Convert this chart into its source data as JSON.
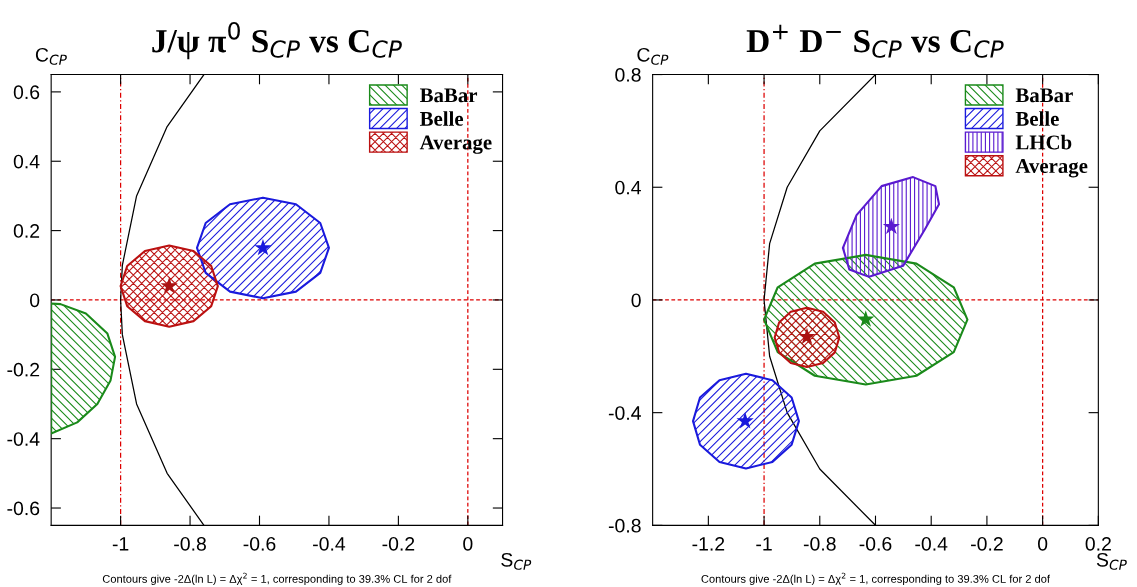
{
  "chart_data": [
    {
      "type": "area",
      "title": "J/ψ π$^{0}$ S$_{CP}$ vs C$_{CP}$",
      "xlabel": "S$_{CP}$",
      "ylabel": "C$_{CP}$",
      "xlim": [
        -1.2,
        0.1
      ],
      "ylim": [
        -0.65,
        0.65
      ],
      "xticks": [
        -1,
        -0.8,
        -0.6,
        -0.4,
        -0.2,
        0
      ],
      "yticks": [
        -0.6,
        -0.4,
        -0.2,
        0,
        0.2,
        0.4,
        0.6
      ],
      "grid": false,
      "legend": "top right",
      "annotations": [
        "Contours give -2Δ(ln L) = Δχ$^{2}$ = 1, corresponding to 39.3% CL for 2 dof"
      ],
      "ref_lines": [
        {
          "axis": "x",
          "value": -1,
          "color": "#dd0000",
          "line_style": "dashdot"
        },
        {
          "axis": "x",
          "value": 0,
          "color": "#dd0000",
          "line_style": "dashed"
        },
        {
          "axis": "y",
          "value": 0,
          "color": "#dd0000",
          "line_style": "dashed"
        }
      ],
      "series": [
        {
          "type": "line",
          "color": "#000000",
          "x": [
            -0.76,
            -0.866,
            -0.954,
            -0.995,
            -1.0,
            -0.995,
            -0.954,
            -0.866,
            -0.76
          ],
          "values": [
            0.65,
            0.5,
            0.3,
            0.1,
            0,
            -0.1,
            -0.3,
            -0.5,
            -0.65
          ]
        },
        {
          "name": "BaBar",
          "color": "#1a8a1a",
          "x": [
            -1.2,
            -1.173,
            -1.1,
            -1.038,
            -1.016,
            -1.029,
            -1.067,
            -1.125,
            -1.2
          ],
          "values": [
            -0.01,
            -0.012,
            -0.039,
            -0.097,
            -0.164,
            -0.232,
            -0.3,
            -0.353,
            -0.385
          ]
        },
        {
          "name": "Belle",
          "color": "#1a1add",
          "x": [
            -0.4,
            -0.425,
            -0.495,
            -0.59,
            -0.685,
            -0.755,
            -0.78,
            -0.755,
            -0.685,
            -0.59,
            -0.495,
            -0.425
          ],
          "values": [
            0.15,
            0.222,
            0.276,
            0.295,
            0.276,
            0.222,
            0.15,
            0.078,
            0.024,
            0.005,
            0.024,
            0.078
          ]
        },
        {
          "name": "Average",
          "color": "#bb1111",
          "x": [
            -0.72,
            -0.739,
            -0.79,
            -0.86,
            -0.93,
            -0.981,
            -1.0,
            -0.981,
            -0.93,
            -0.86,
            -0.79,
            -0.739
          ],
          "values": [
            0.04,
            0.098,
            0.141,
            0.157,
            0.141,
            0.098,
            0.04,
            -0.018,
            -0.061,
            -0.077,
            -0.061,
            -0.018
          ]
        },
        {
          "type": "scatter",
          "marker": "star",
          "color": "#1a1add",
          "x": [
            -0.59
          ],
          "values": [
            0.15
          ]
        },
        {
          "type": "scatter",
          "marker": "star",
          "color": "#aa1111",
          "x": [
            -0.86
          ],
          "values": [
            0.04
          ]
        }
      ]
    },
    {
      "type": "area",
      "title": "D$^{+}$ D$^{−}$ S$_{CP}$ vs C$_{CP}$",
      "xlabel": "S$_{CP}$",
      "ylabel": "C$_{CP}$",
      "xlim": [
        -1.4,
        0.2
      ],
      "ylim": [
        -0.8,
        0.8
      ],
      "xticks": [
        -1.2,
        -1,
        -0.8,
        -0.6,
        -0.4,
        -0.2,
        0,
        0.2
      ],
      "yticks": [
        -0.8,
        -0.4,
        0,
        0.4,
        0.8
      ],
      "grid": false,
      "legend": "top right",
      "annotations": [
        "Contours give -2Δ(ln L) = Δχ$^{2}$ = 1, corresponding to 39.3% CL for 2 dof"
      ],
      "ref_lines": [
        {
          "axis": "x",
          "value": -1,
          "color": "#dd0000",
          "line_style": "dashdot"
        },
        {
          "axis": "x",
          "value": 0,
          "color": "#dd0000",
          "line_style": "dashed"
        },
        {
          "axis": "y",
          "value": 0,
          "color": "#dd0000",
          "line_style": "dashed"
        }
      ],
      "series": [
        {
          "type": "line",
          "color": "#000000",
          "x": [
            -0.6,
            -0.8,
            -0.917,
            -0.98,
            -1.0,
            -0.98,
            -0.917,
            -0.8,
            -0.6
          ],
          "values": [
            0.8,
            0.6,
            0.4,
            0.2,
            0,
            -0.2,
            -0.4,
            -0.6,
            -0.8
          ]
        },
        {
          "name": "BaBar",
          "color": "#1a8a1a",
          "x": [
            -0.27,
            -0.319,
            -0.453,
            -0.635,
            -0.818,
            -0.951,
            -1.0,
            -0.951,
            -0.818,
            -0.635,
            -0.453,
            -0.319
          ],
          "values": [
            -0.07,
            0.045,
            0.129,
            0.16,
            0.129,
            0.045,
            -0.07,
            -0.185,
            -0.269,
            -0.3,
            -0.269,
            -0.185
          ]
        },
        {
          "name": "Belle",
          "color": "#1a1add",
          "x": [
            -0.875,
            -0.901,
            -0.97,
            -1.065,
            -1.16,
            -1.23,
            -1.255,
            -1.23,
            -1.16,
            -1.065,
            -0.97,
            -0.901
          ],
          "values": [
            -0.43,
            -0.346,
            -0.285,
            -0.262,
            -0.285,
            -0.346,
            -0.43,
            -0.514,
            -0.575,
            -0.598,
            -0.575,
            -0.514
          ]
        },
        {
          "name": "LHCb",
          "color": "#5a1ad0",
          "x": [
            -0.465,
            -0.385,
            -0.372,
            -0.423,
            -0.501,
            -0.623,
            -0.694,
            -0.717,
            -0.668,
            -0.578
          ],
          "values": [
            0.436,
            0.404,
            0.34,
            0.25,
            0.121,
            0.082,
            0.108,
            0.185,
            0.301,
            0.404
          ]
        },
        {
          "name": "Average",
          "color": "#bb1111",
          "x": [
            -0.73,
            -0.746,
            -0.788,
            -0.846,
            -0.904,
            -0.946,
            -0.962,
            -0.946,
            -0.904,
            -0.846,
            -0.788,
            -0.746
          ],
          "values": [
            -0.133,
            -0.08,
            -0.042,
            -0.028,
            -0.042,
            -0.08,
            -0.133,
            -0.186,
            -0.224,
            -0.238,
            -0.224,
            -0.186
          ]
        },
        {
          "type": "scatter",
          "marker": "star",
          "color": "#1a8a1a",
          "x": [
            -0.635
          ],
          "values": [
            -0.069
          ]
        },
        {
          "type": "scatter",
          "marker": "star",
          "color": "#5a1ad0",
          "x": [
            -0.543
          ],
          "values": [
            0.26
          ]
        },
        {
          "type": "scatter",
          "marker": "star",
          "color": "#1a1add",
          "x": [
            -1.068
          ],
          "values": [
            -0.43
          ]
        },
        {
          "type": "scatter",
          "marker": "star",
          "color": "#aa1111",
          "x": [
            -0.846
          ],
          "values": [
            -0.131
          ]
        }
      ]
    }
  ]
}
